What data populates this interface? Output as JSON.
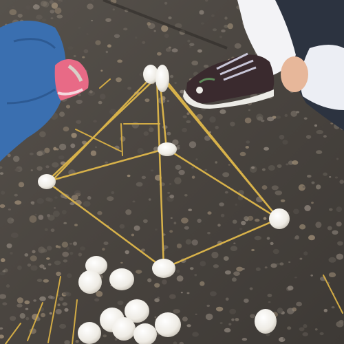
{
  "scene": {
    "subject": "spaghetti-and-marshmallow-pyramid",
    "colors": {
      "pavement": "#4b4642",
      "pavement_dark": "#37332f",
      "pebble_light": "#8a8178",
      "pebble_warm": "#9b8a74",
      "spaghetti": "#d8b24a",
      "marshmallow": "#f2f0ea",
      "marshmallow_shadow": "#cfcac0",
      "jeans": "#3a6fb0",
      "shoe_pink": "#e86a86",
      "sneaker_body": "#3a2a2e",
      "sneaker_sole": "#ecebe6",
      "sleeve_white": "#f3f3f6",
      "skin": "#e7b79a",
      "dark_pants": "#2c3340"
    }
  }
}
